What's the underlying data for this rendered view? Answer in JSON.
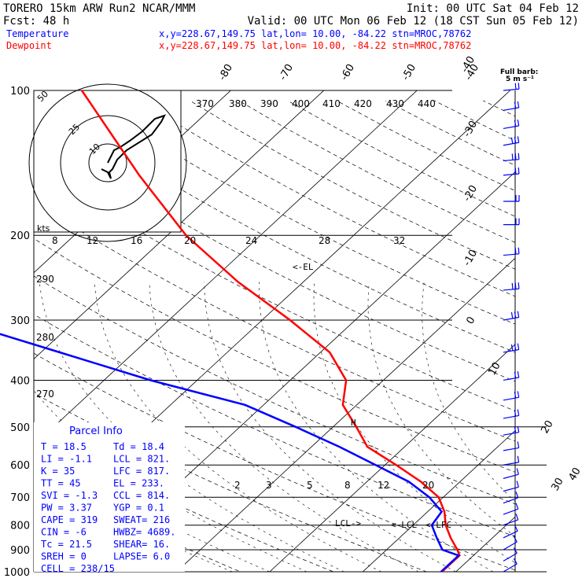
{
  "header": {
    "line1_left": "TORERO  15km ARW   Run2    NCAR/MMM",
    "line1_right": "Init: 00 UTC Sat 04 Feb 12",
    "line2_left": "Fcst:   48 h",
    "line2_right": "Valid: 00 UTC Mon 06 Feb 12 (18 CST Sun 05 Feb 12)",
    "temp_label": "Temperature",
    "dew_label": "Dewpoint",
    "point_info": "x,y=228.67,149.75   lat,lon= 10.00, -84.22  stn=MROC,78762",
    "barb_title": "Full barb:",
    "barb_units": "5 m s⁻¹"
  },
  "colors": {
    "temperature": "#ff0000",
    "dewpoint": "#0000ff",
    "parcel_title": "#0000ff",
    "text": "#000000",
    "grid": "#000000"
  },
  "chart_data": {
    "type": "line",
    "title": "",
    "pressure_levels": [
      "100",
      "200",
      "300",
      "400",
      "500",
      "600",
      "700",
      "800",
      "900",
      "1000"
    ],
    "temperature_ticks": [
      "-40",
      "-30",
      "-20",
      "-10",
      "0",
      "10",
      "20",
      "30",
      "40"
    ],
    "upper_temperature_ticks": [
      "-80",
      "-70",
      "-60",
      "-50",
      "-40"
    ],
    "theta_labels": [
      "370",
      "380",
      "390",
      "400",
      "410",
      "420",
      "430",
      "440"
    ],
    "thetae_labels": [
      "4",
      "8",
      "12",
      "16",
      "20",
      "24",
      "28",
      "32"
    ],
    "mixing_ratio_labels": [
      "2",
      "3",
      "5",
      "8",
      "12",
      "20"
    ],
    "dry_adiabat_labels": [
      "290",
      "280",
      "270"
    ],
    "series": [
      {
        "name": "Temperature",
        "color": "#ff0000",
        "points": [
          [
            1000,
            18.5
          ],
          [
            925,
            18.5
          ],
          [
            900,
            17.6
          ],
          [
            850,
            15.5
          ],
          [
            800,
            13.5
          ],
          [
            750,
            11.8
          ],
          [
            700,
            9.5
          ],
          [
            650,
            5.8
          ],
          [
            600,
            1.2
          ],
          [
            550,
            -4.0
          ],
          [
            500,
            -7.5
          ],
          [
            450,
            -11.5
          ],
          [
            400,
            -14.0
          ],
          [
            350,
            -19.0
          ],
          [
            300,
            -27.0
          ],
          [
            250,
            -37.0
          ],
          [
            200,
            -48.0
          ],
          [
            150,
            -60.0
          ],
          [
            100,
            -76.0
          ]
        ]
      },
      {
        "name": "Dewpoint",
        "color": "#0000ff",
        "points": [
          [
            1000,
            18.4
          ],
          [
            925,
            18.4
          ],
          [
            900,
            16.0
          ],
          [
            850,
            14.0
          ],
          [
            800,
            12.0
          ],
          [
            750,
            11.5
          ],
          [
            700,
            8.5
          ],
          [
            650,
            4.5
          ],
          [
            600,
            -1.0
          ],
          [
            550,
            -7.0
          ],
          [
            500,
            -14.0
          ],
          [
            450,
            -22.0
          ],
          [
            400,
            -35.0
          ],
          [
            350,
            -48.0
          ],
          [
            300,
            -63.0
          ],
          [
            250,
            -70.0
          ],
          [
            200,
            -77.0
          ],
          [
            150,
            -85.0
          ],
          [
            100,
            -90.0
          ]
        ]
      }
    ],
    "annotations": [
      "<-EL",
      "LCL->",
      "<-LCL",
      "<-LFC",
      "H"
    ],
    "legend_placement": "top-left"
  },
  "hodograph": {
    "kts_label": "kts",
    "ring_labels": [
      "50",
      "25",
      "10"
    ],
    "points": [
      [
        0,
        0
      ],
      [
        2,
        -4
      ],
      [
        4,
        -8
      ],
      [
        8,
        -10
      ],
      [
        14,
        -14
      ],
      [
        22,
        -20
      ],
      [
        30,
        -28
      ],
      [
        36,
        -30
      ],
      [
        34,
        -26
      ],
      [
        28,
        -18
      ],
      [
        12,
        -8
      ],
      [
        6,
        -2
      ],
      [
        3,
        4
      ],
      [
        1,
        6
      ],
      [
        2,
        10
      ],
      [
        0,
        6
      ],
      [
        -4,
        4
      ]
    ]
  },
  "wind_profile": {
    "title": "Full barb:",
    "levels": [
      100,
      110,
      120,
      130,
      140,
      150,
      170,
      190,
      220,
      260,
      300,
      350,
      400,
      440,
      480,
      520,
      560,
      600,
      640,
      680,
      720,
      760,
      800,
      850,
      900,
      950,
      1000
    ],
    "speeds_ms": [
      8,
      10,
      12,
      14,
      14,
      12,
      10,
      10,
      12,
      14,
      14,
      14,
      12,
      10,
      10,
      8,
      6,
      5,
      4,
      4,
      5,
      5,
      6,
      6,
      5,
      4,
      3
    ],
    "dirs_deg": [
      85,
      80,
      80,
      80,
      85,
      85,
      90,
      90,
      85,
      85,
      80,
      80,
      80,
      80,
      80,
      80,
      80,
      80,
      75,
      75,
      70,
      70,
      70,
      65,
      60,
      60,
      60
    ]
  },
  "parcel_info": {
    "title": "Parcel Info",
    "rows": [
      [
        "T  =    18.5",
        "Td =  18.4"
      ],
      [
        "LI =    -1.1",
        "LCL =  821."
      ],
      [
        "K  =      35",
        "LFC =  817."
      ],
      [
        "TT =      45",
        "EL  =  233."
      ],
      [
        "SVI =   -1.3",
        "CCL =  814."
      ],
      [
        "PW =    3.37",
        "YGP =   0.1"
      ],
      [
        "CAPE =   319",
        "SWEAT=  216"
      ],
      [
        "CIN =     -6",
        "HWBZ= 4689."
      ],
      [
        "Tc =    21.5",
        "SHEAR=  16."
      ],
      [
        "SREH =     0",
        "LAPSE=  6.0"
      ],
      [
        "CELL = 238/15",
        ""
      ]
    ]
  }
}
